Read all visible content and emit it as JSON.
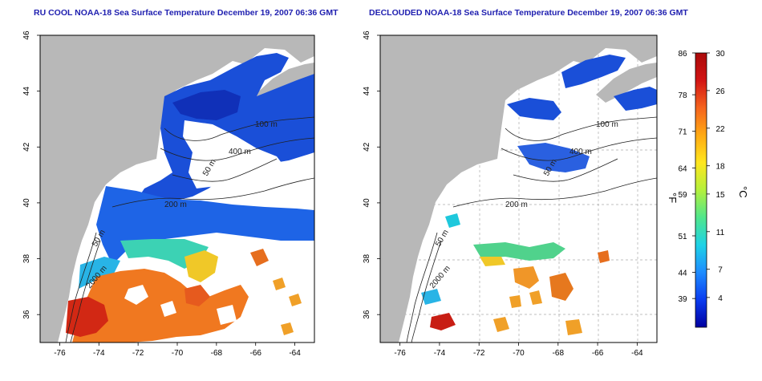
{
  "left_panel": {
    "title": "RU COOL NOAA-18 Sea Surface Temperature December 19, 2007 06:36 GMT",
    "x_ticks": [
      "-76",
      "-74",
      "-72",
      "-70",
      "-68",
      "-66",
      "-64"
    ],
    "y_ticks": [
      "46",
      "44",
      "42",
      "40",
      "38",
      "36"
    ],
    "contour_labels": [
      "100 m",
      "400 m",
      "50 m",
      "200 m",
      "50 m",
      "2000 m"
    ]
  },
  "right_panel": {
    "title": "DECLOUDED NOAA-18 Sea Surface Temperature December 19, 2007 06:36 GMT",
    "x_ticks": [
      "-76",
      "-74",
      "-72",
      "-70",
      "-68",
      "-66",
      "-64"
    ],
    "y_ticks": [
      "46",
      "44",
      "42",
      "40",
      "38",
      "36"
    ],
    "contour_labels": [
      "100 m",
      "400 m",
      "50 m",
      "200 m",
      "50 m",
      "2000 m"
    ]
  },
  "colorbar": {
    "fahrenheit_label": "°F",
    "celsius_label": "°C",
    "fahrenheit_ticks": [
      "86",
      "78",
      "71",
      "64",
      "59",
      "51",
      "44",
      "39"
    ],
    "celsius_ticks": [
      "30",
      "26",
      "22",
      "18",
      "15",
      "11",
      "7",
      "4"
    ],
    "colors": [
      "#0000a0",
      "#0a3cf0",
      "#1e8cff",
      "#1ed2e6",
      "#50e68c",
      "#b4f03c",
      "#ffe61e",
      "#ffaa14",
      "#f5641e",
      "#d21414",
      "#aa0a0a"
    ]
  },
  "colors": {
    "land": "#b8b8b8",
    "ocean": "#ffffff",
    "title": "#2020b0"
  }
}
